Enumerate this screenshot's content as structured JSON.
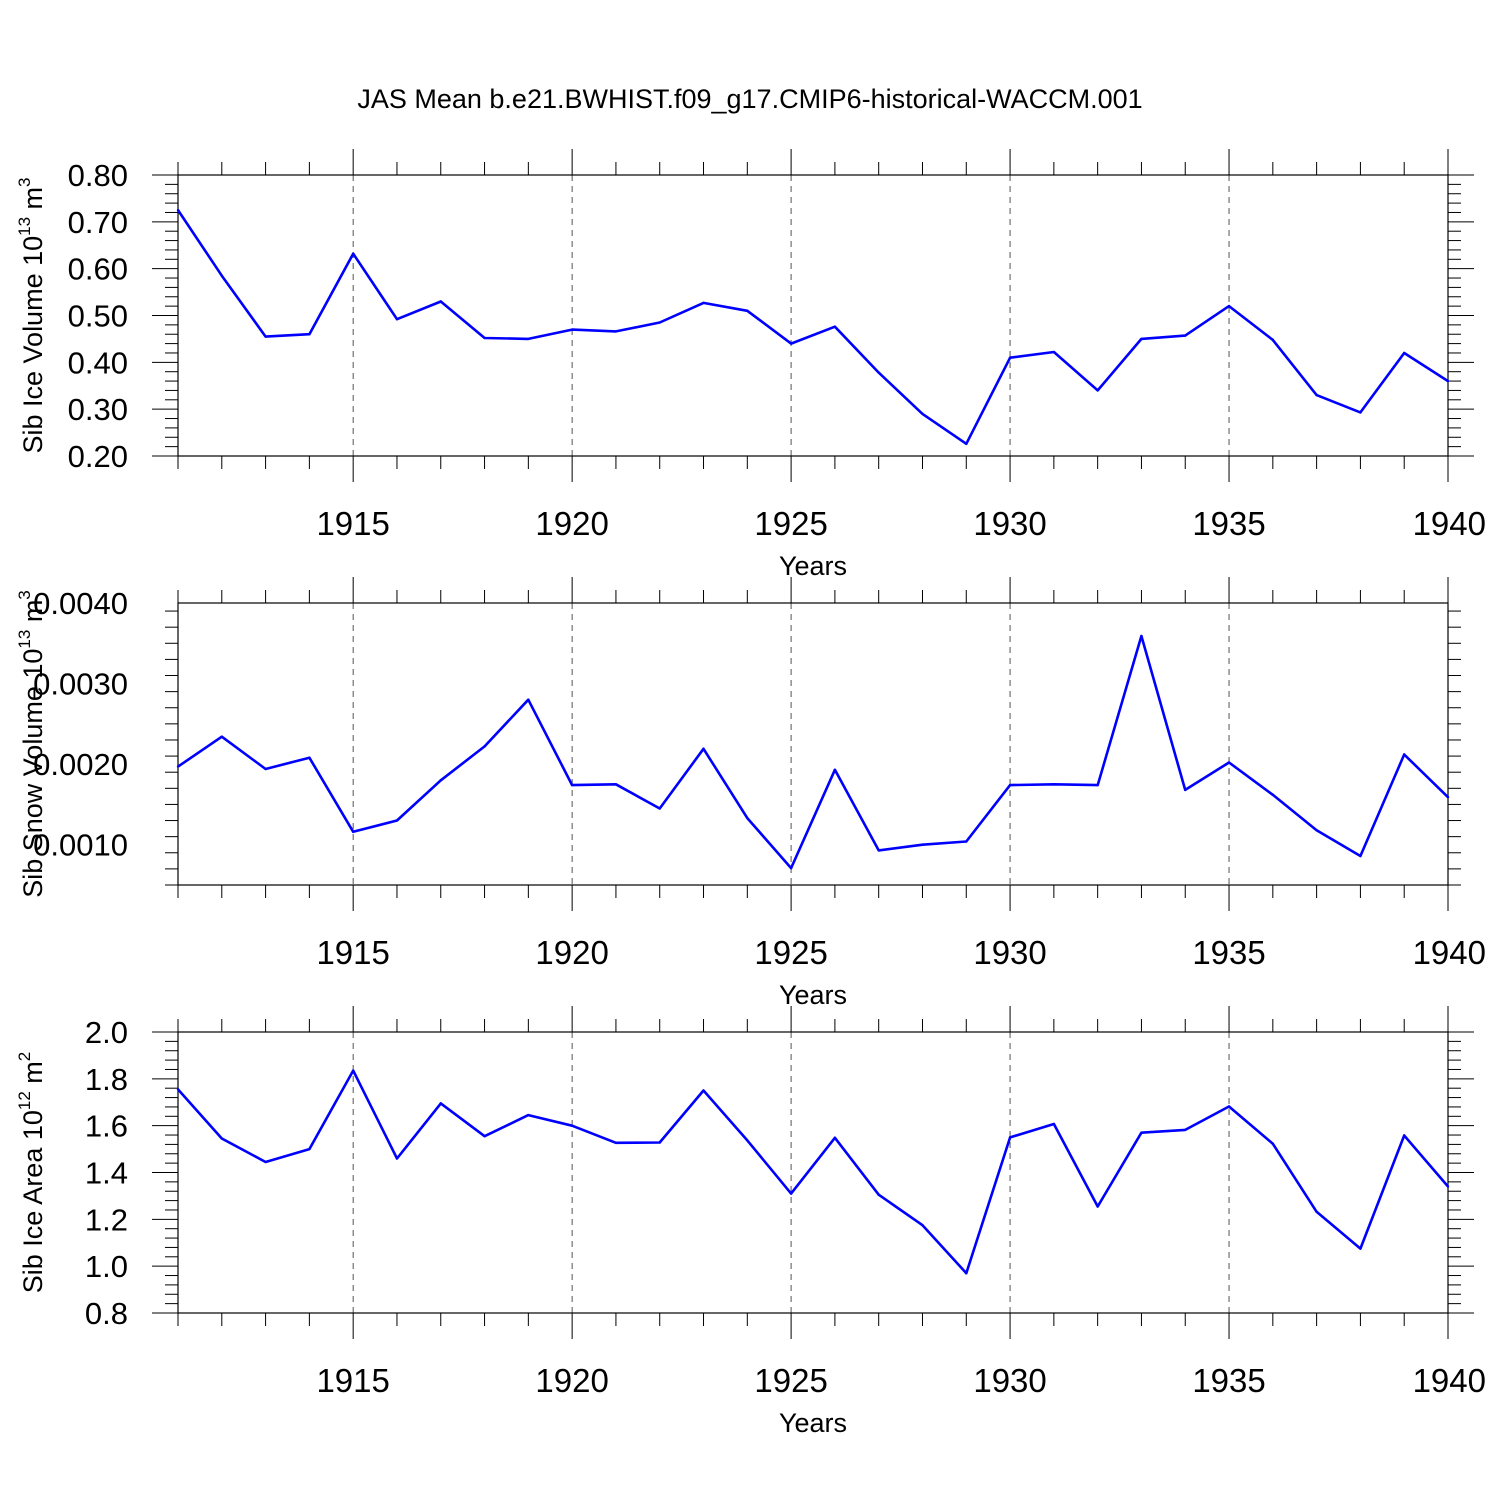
{
  "figure": {
    "title": "JAS Mean b.e21.BWHIST.f09_g17.CMIP6-historical-WACCM.001"
  },
  "chart_data": [
    {
      "type": "line",
      "title": "",
      "xlabel": "Years",
      "ylabel": "Sib Ice Volume",
      "ylabel_unit": "10",
      "ylabel_exp": "13",
      "ylabel_unit2": "m",
      "ylabel_exp2": "3",
      "xlim": [
        1911,
        1940
      ],
      "ylim": [
        0.2,
        0.8
      ],
      "yticks": [
        0.2,
        0.3,
        0.4,
        0.5,
        0.6,
        0.7,
        0.8
      ],
      "ytick_labels": [
        "0.20",
        "0.30",
        "0.40",
        "0.50",
        "0.60",
        "0.70",
        "0.80"
      ],
      "xticks": [
        1915,
        1920,
        1925,
        1930,
        1935,
        1940
      ],
      "xtick_labels": [
        "1915",
        "1920",
        "1925",
        "1930",
        "1935",
        "1940"
      ],
      "grid": "vertical dashed at major x ticks",
      "line_color": "#0000ff",
      "x": [
        1911,
        1912,
        1913,
        1914,
        1915,
        1916,
        1917,
        1918,
        1919,
        1920,
        1921,
        1922,
        1923,
        1924,
        1925,
        1926,
        1927,
        1928,
        1929,
        1930,
        1931,
        1932,
        1933,
        1934,
        1935,
        1936,
        1937,
        1938,
        1939,
        1940
      ],
      "values": [
        0.725,
        0.585,
        0.455,
        0.46,
        0.632,
        0.492,
        0.53,
        0.452,
        0.45,
        0.47,
        0.466,
        0.485,
        0.527,
        0.51,
        0.44,
        0.476,
        0.378,
        0.29,
        0.226,
        0.41,
        0.422,
        0.34,
        0.45,
        0.457,
        0.52,
        0.448,
        0.33,
        0.293,
        0.42,
        0.36
      ]
    },
    {
      "type": "line",
      "title": "",
      "xlabel": "Years",
      "ylabel": "Sib Snow Volume",
      "ylabel_unit": "10",
      "ylabel_exp": "13",
      "ylabel_unit2": "m",
      "ylabel_exp2": "3",
      "xlim": [
        1911,
        1940
      ],
      "ylim": [
        0.0005,
        0.004
      ],
      "yticks": [
        0.001,
        0.002,
        0.003,
        0.004
      ],
      "ytick_labels": [
        "0.0010",
        "0.0020",
        "0.0030",
        "0.0040"
      ],
      "xticks": [
        1915,
        1920,
        1925,
        1930,
        1935,
        1940
      ],
      "xtick_labels": [
        "1915",
        "1920",
        "1925",
        "1930",
        "1935",
        "1940"
      ],
      "grid": "vertical dashed at major x ticks",
      "line_color": "#0000ff",
      "x": [
        1911,
        1912,
        1913,
        1914,
        1915,
        1916,
        1917,
        1918,
        1919,
        1920,
        1921,
        1922,
        1923,
        1924,
        1925,
        1926,
        1927,
        1928,
        1929,
        1930,
        1931,
        1932,
        1933,
        1934,
        1935,
        1936,
        1937,
        1938,
        1939,
        1940
      ],
      "values": [
        0.00197,
        0.00234,
        0.00194,
        0.00208,
        0.00116,
        0.0013,
        0.0018,
        0.00222,
        0.0028,
        0.00174,
        0.00175,
        0.00145,
        0.00219,
        0.00133,
        0.00071,
        0.00193,
        0.00093,
        0.001,
        0.00104,
        0.00174,
        0.00175,
        0.00174,
        0.00359,
        0.00168,
        0.00202,
        0.00162,
        0.00118,
        0.00086,
        0.00212,
        0.00159
      ]
    },
    {
      "type": "line",
      "title": "",
      "xlabel": "Years",
      "ylabel": "Sib Ice Area",
      "ylabel_unit": "10",
      "ylabel_exp": "12",
      "ylabel_unit2": "m",
      "ylabel_exp2": "2",
      "xlim": [
        1911,
        1940
      ],
      "ylim": [
        0.8,
        2.0
      ],
      "yticks": [
        0.8,
        1.0,
        1.2,
        1.4,
        1.6,
        1.8,
        2.0
      ],
      "ytick_labels": [
        "0.8",
        "1.0",
        "1.2",
        "1.4",
        "1.6",
        "1.8",
        "2.0"
      ],
      "xticks": [
        1915,
        1920,
        1925,
        1930,
        1935,
        1940
      ],
      "xtick_labels": [
        "1915",
        "1920",
        "1925",
        "1930",
        "1935",
        "1940"
      ],
      "grid": "vertical dashed at major x ticks",
      "line_color": "#0000ff",
      "x": [
        1911,
        1912,
        1913,
        1914,
        1915,
        1916,
        1917,
        1918,
        1919,
        1920,
        1921,
        1922,
        1923,
        1924,
        1925,
        1926,
        1927,
        1928,
        1929,
        1930,
        1931,
        1932,
        1933,
        1934,
        1935,
        1936,
        1937,
        1938,
        1939,
        1940
      ],
      "values": [
        1.755,
        1.545,
        1.445,
        1.5,
        1.835,
        1.46,
        1.695,
        1.555,
        1.645,
        1.6,
        1.527,
        1.528,
        1.75,
        1.537,
        1.31,
        1.548,
        1.305,
        1.175,
        0.97,
        1.55,
        1.607,
        1.255,
        1.57,
        1.582,
        1.682,
        1.523,
        1.232,
        1.075,
        1.558,
        1.34
      ]
    }
  ]
}
